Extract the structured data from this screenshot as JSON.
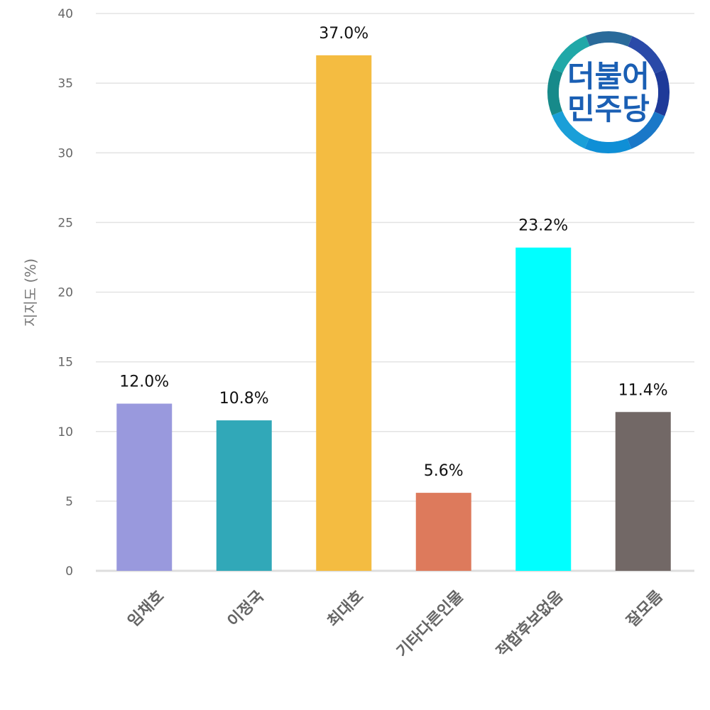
{
  "chart_data": {
    "type": "bar",
    "categories": [
      "임채호",
      "이정국",
      "최대호",
      "기타다른인물",
      "적합후보없음",
      "잘모름"
    ],
    "values": [
      12.0,
      10.8,
      37.0,
      5.6,
      23.2,
      11.4
    ],
    "data_labels": [
      "12.0%",
      "10.8%",
      "37.0%",
      "5.6%",
      "23.2%",
      "11.4%"
    ],
    "colors": [
      "#9999dd",
      "#31a8b8",
      "#f4bc41",
      "#dd7a5c",
      "#00ffff",
      "#726866"
    ],
    "ylabel": "지지도 (%)",
    "ylim": [
      0,
      40
    ],
    "yticks": [
      0,
      5,
      10,
      15,
      20,
      25,
      30,
      35,
      40
    ],
    "grid": true,
    "xlabel_rotation": -45
  },
  "logo": {
    "line1": "더불어",
    "line2": "민주당",
    "ring_colors": [
      "#2a4aa8",
      "#1e3a99",
      "#1a78c8",
      "#0f8fd6",
      "#1a9fd8",
      "#178a8a",
      "#20a8a8",
      "#2a6a9a"
    ]
  }
}
